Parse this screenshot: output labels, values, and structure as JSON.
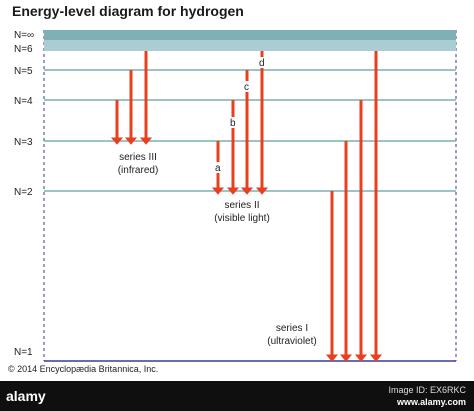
{
  "title": "Energy-level diagram for hydrogen",
  "levels": [
    {
      "label": "N=∞"
    },
    {
      "label": "N=6"
    },
    {
      "label": "N=5"
    },
    {
      "label": "N=4"
    },
    {
      "label": "N=3"
    },
    {
      "label": "N=2"
    },
    {
      "label": "N=1"
    }
  ],
  "series": [
    {
      "line1": "series III",
      "line2": "(infrared)"
    },
    {
      "line1": "series II",
      "line2": "(visible light)"
    },
    {
      "line1": "series I",
      "line2": "(ultraviolet)"
    }
  ],
  "line_letters": [
    "a",
    "b",
    "c",
    "d"
  ],
  "colors": {
    "transition": "#e8401f",
    "level_line": "#5f9fa6",
    "continuum": "#a9cdd3",
    "border": "#3a3a9a"
  },
  "copyright": "© 2014 Encyclopædia Britannica, Inc.",
  "stock": {
    "brand": "alamy",
    "image_id": "Image ID: EX6RKC",
    "url": "www.alamy.com"
  }
}
